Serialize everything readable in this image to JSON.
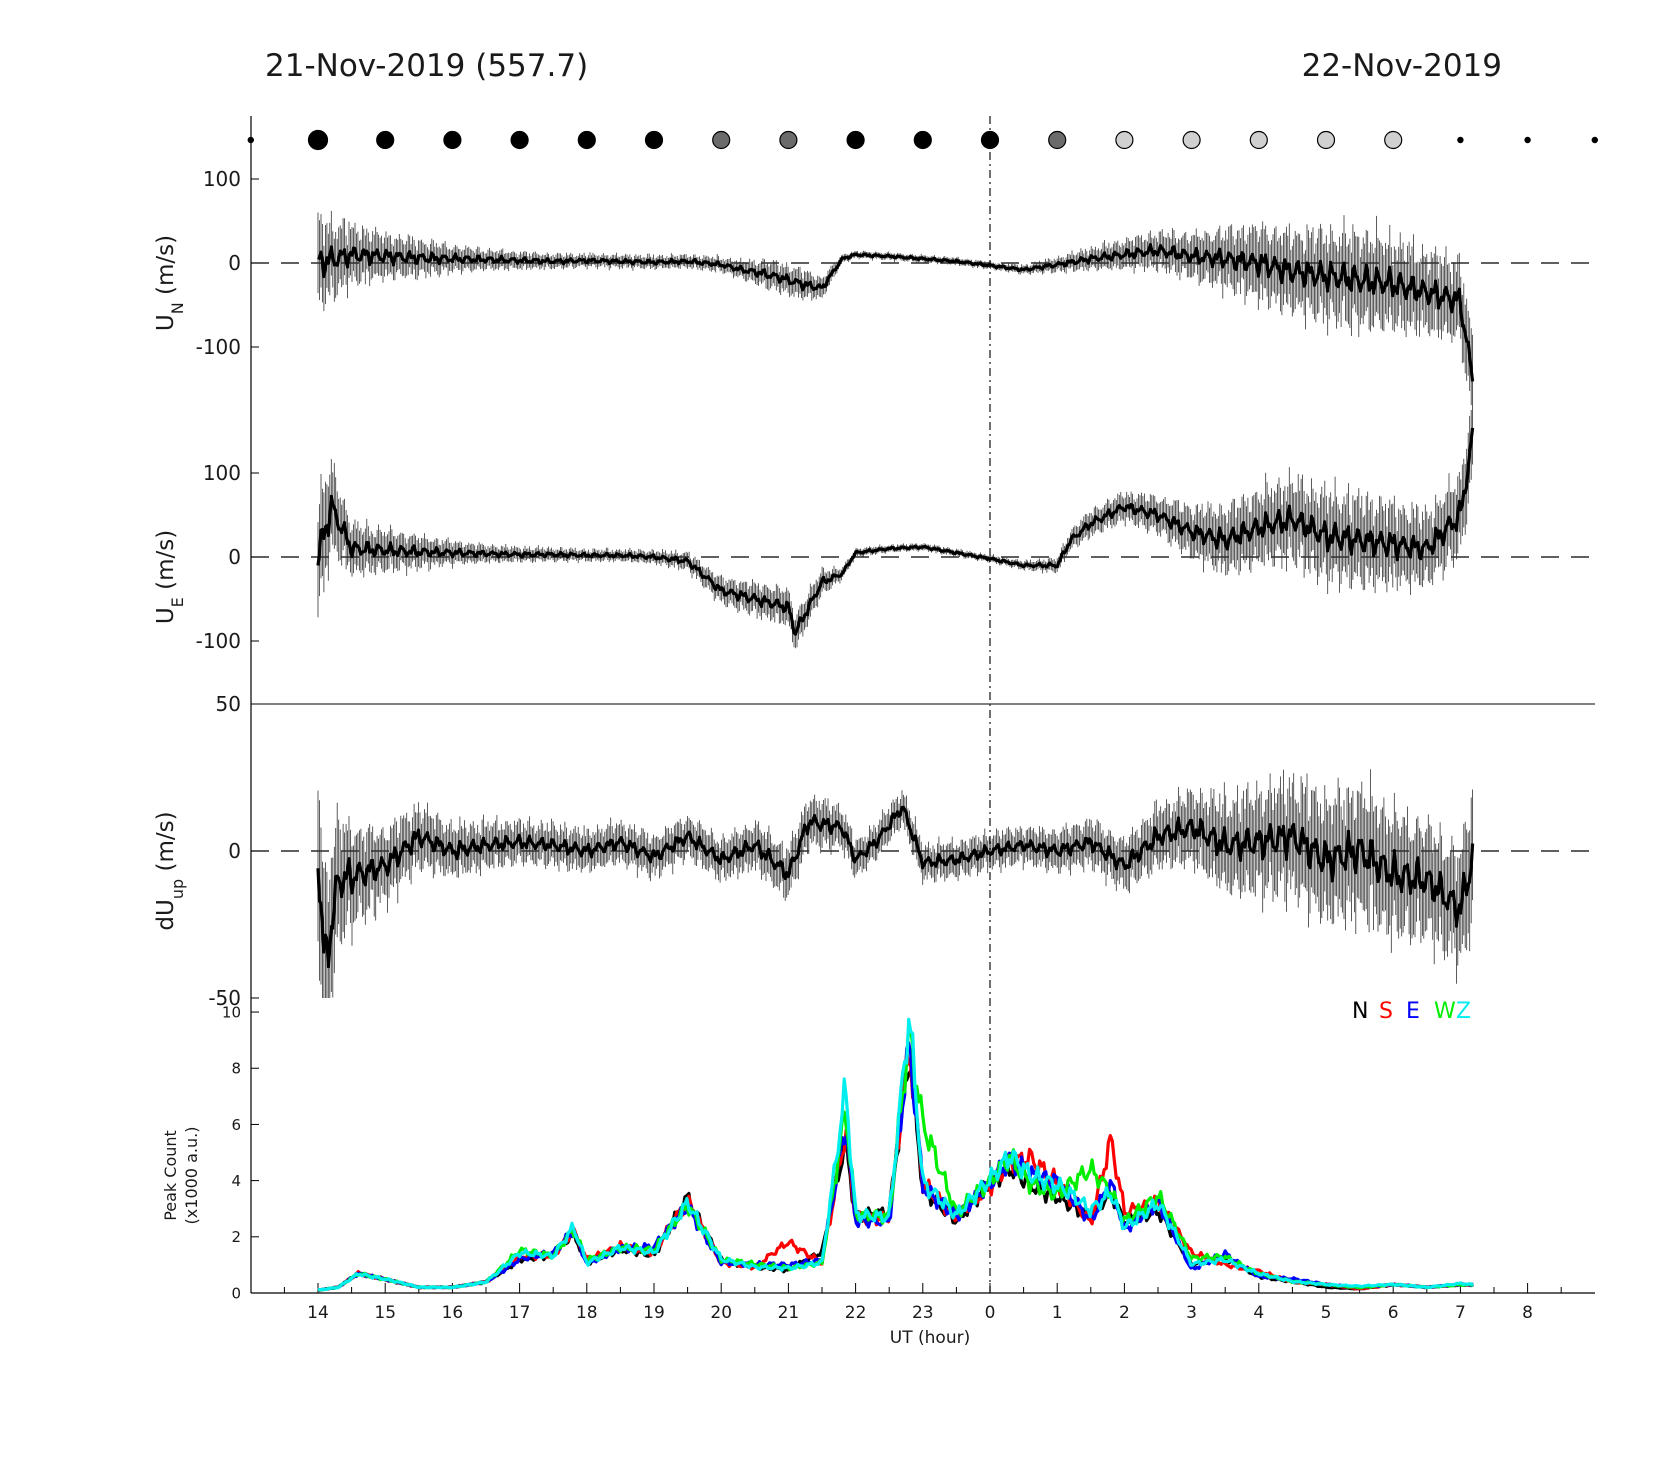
{
  "header": {
    "left_date": "21-Nov-2019 (557.7)",
    "right_date": "22-Nov-2019"
  },
  "chart_data": [
    {
      "type": "line",
      "name": "UN",
      "ylabel_main": "U",
      "ylabel_sub": "N",
      "ylabel_unit": " (m/s)",
      "ylim": [
        -175,
        175
      ],
      "yticks": [
        100,
        0,
        -100
      ],
      "x": [
        14.0,
        14.5,
        15.0,
        15.5,
        16.0,
        16.5,
        17.0,
        17.5,
        18.0,
        18.5,
        19.0,
        19.5,
        20.0,
        20.3,
        20.6,
        20.9,
        21.2,
        21.5,
        21.8,
        22.0,
        22.5,
        23.0,
        23.5,
        24.0,
        24.5,
        25.0,
        25.5,
        26.0,
        26.5,
        27.0,
        27.5,
        28.0,
        28.5,
        29.0,
        29.5,
        30.0,
        30.5,
        31.0,
        31.2
      ],
      "y": [
        0,
        10,
        8,
        6,
        5,
        4,
        3,
        2,
        3,
        2,
        1,
        2,
        -2,
        -8,
        -12,
        -18,
        -25,
        -30,
        5,
        10,
        8,
        5,
        2,
        -3,
        -8,
        -2,
        5,
        10,
        15,
        8,
        5,
        0,
        -10,
        -15,
        -20,
        -25,
        -35,
        -45,
        -150
      ],
      "err": [
        60,
        40,
        30,
        25,
        18,
        14,
        12,
        10,
        9,
        9,
        9,
        9,
        10,
        12,
        18,
        20,
        20,
        15,
        6,
        5,
        5,
        5,
        5,
        5,
        6,
        10,
        15,
        20,
        25,
        30,
        40,
        50,
        55,
        60,
        65,
        60,
        55,
        55,
        60
      ]
    },
    {
      "type": "line",
      "name": "UE",
      "ylabel_main": "U",
      "ylabel_sub": "E",
      "ylabel_unit": " (m/s)",
      "ylim": [
        -175,
        175
      ],
      "yticks": [
        100,
        0,
        -100
      ],
      "x": [
        14.0,
        14.2,
        14.5,
        15.0,
        15.5,
        16.0,
        16.5,
        17.0,
        17.5,
        18.0,
        18.5,
        19.0,
        19.5,
        20.0,
        20.5,
        21.0,
        21.1,
        21.5,
        21.8,
        22.0,
        22.5,
        23.0,
        23.5,
        24.0,
        24.5,
        25.0,
        25.2,
        25.5,
        26.0,
        26.5,
        27.0,
        27.5,
        28.0,
        28.5,
        29.0,
        29.5,
        30.0,
        30.5,
        31.0,
        31.2
      ],
      "y": [
        0,
        60,
        10,
        8,
        6,
        5,
        4,
        3,
        3,
        2,
        2,
        0,
        -5,
        -40,
        -50,
        -60,
        -90,
        -30,
        -20,
        5,
        10,
        12,
        5,
        -2,
        -10,
        -10,
        20,
        40,
        60,
        50,
        30,
        20,
        35,
        45,
        25,
        20,
        15,
        10,
        50,
        150
      ],
      "err": [
        80,
        60,
        35,
        28,
        22,
        16,
        12,
        10,
        9,
        8,
        8,
        9,
        12,
        18,
        22,
        25,
        25,
        18,
        8,
        6,
        5,
        5,
        5,
        5,
        6,
        10,
        14,
        18,
        20,
        25,
        35,
        45,
        50,
        55,
        60,
        60,
        55,
        50,
        55,
        60
      ]
    },
    {
      "type": "line",
      "name": "dUup",
      "ylabel_main": "dU",
      "ylabel_sub": "up",
      "ylabel_unit": " (m/s)",
      "ylim": [
        -50,
        50
      ],
      "yticks": [
        50,
        0,
        -50
      ],
      "x": [
        14.0,
        14.1,
        14.3,
        14.6,
        15.0,
        15.5,
        16.0,
        16.5,
        17.0,
        17.5,
        18.0,
        18.5,
        19.0,
        19.5,
        20.0,
        20.5,
        21.0,
        21.3,
        21.8,
        22.0,
        22.3,
        22.7,
        23.0,
        23.5,
        24.0,
        24.5,
        25.0,
        25.5,
        26.0,
        26.5,
        27.0,
        27.5,
        28.0,
        28.5,
        29.0,
        29.5,
        30.0,
        30.5,
        31.0,
        31.2
      ],
      "y": [
        0,
        -40,
        -10,
        -8,
        -5,
        5,
        0,
        2,
        3,
        2,
        0,
        3,
        -2,
        5,
        -3,
        2,
        -8,
        10,
        8,
        -3,
        3,
        15,
        -4,
        -3,
        0,
        2,
        0,
        3,
        -5,
        5,
        8,
        2,
        3,
        5,
        -3,
        0,
        -8,
        -10,
        -20,
        0
      ],
      "err": [
        40,
        35,
        25,
        18,
        14,
        12,
        10,
        9,
        8,
        8,
        8,
        8,
        8,
        8,
        8,
        9,
        10,
        10,
        8,
        7,
        7,
        7,
        7,
        7,
        7,
        7,
        8,
        9,
        10,
        12,
        14,
        18,
        20,
        22,
        24,
        25,
        24,
        22,
        22,
        30
      ]
    },
    {
      "type": "line",
      "name": "peak-count",
      "ylabel_line1": "Peak Count",
      "ylabel_line2": "(x1000 a.u.)",
      "xlabel": "UT (hour)",
      "ylim": [
        0,
        10.5
      ],
      "yticks": [
        0,
        2,
        4,
        6,
        8,
        10
      ],
      "xticks": [
        "14",
        "15",
        "16",
        "17",
        "18",
        "19",
        "20",
        "21",
        "22",
        "23",
        "0",
        "1",
        "2",
        "3",
        "4",
        "5",
        "6",
        "7",
        "8"
      ],
      "legend": [
        "N",
        "S",
        "E",
        "W",
        "Z"
      ],
      "legend_position": "top-right",
      "x": [
        14.0,
        14.3,
        14.6,
        15.0,
        15.5,
        16.0,
        16.5,
        17.0,
        17.5,
        17.8,
        18.0,
        18.5,
        19.0,
        19.5,
        20.0,
        20.5,
        21.0,
        21.5,
        21.85,
        22.0,
        22.5,
        22.8,
        23.0,
        23.5,
        24.0,
        24.3,
        24.6,
        25.0,
        25.5,
        25.8,
        26.0,
        26.5,
        27.0,
        27.5,
        28.0,
        28.5,
        29.0,
        29.5,
        30.0,
        30.5,
        31.0,
        31.2
      ],
      "series": [
        {
          "name": "N",
          "color": "#000000",
          "y": [
            0.1,
            0.2,
            0.7,
            0.5,
            0.2,
            0.2,
            0.4,
            1.2,
            1.3,
            2.1,
            1.1,
            1.6,
            1.3,
            3.4,
            1.2,
            0.9,
            0.8,
            1.5,
            5.5,
            2.7,
            2.8,
            8.5,
            3.8,
            2.6,
            3.8,
            4.4,
            3.9,
            3.5,
            2.6,
            3.5,
            2.5,
            3.0,
            1.0,
            1.2,
            0.6,
            0.4,
            0.2,
            0.15,
            0.3,
            0.2,
            0.3,
            0.3
          ]
        },
        {
          "name": "S",
          "color": "#ff0000",
          "y": [
            0.1,
            0.2,
            0.7,
            0.5,
            0.2,
            0.2,
            0.4,
            1.3,
            1.3,
            2.2,
            1.2,
            1.7,
            1.4,
            3.3,
            1.1,
            0.9,
            1.8,
            1.1,
            5.8,
            2.6,
            2.6,
            8.8,
            4.0,
            2.7,
            3.7,
            4.6,
            4.9,
            4.0,
            2.4,
            5.4,
            2.9,
            3.3,
            1.4,
            1.0,
            0.8,
            0.4,
            0.3,
            0.15,
            0.3,
            0.2,
            0.3,
            0.3
          ]
        },
        {
          "name": "E",
          "color": "#0000ff",
          "y": [
            0.1,
            0.2,
            0.7,
            0.5,
            0.2,
            0.2,
            0.4,
            1.2,
            1.4,
            2.2,
            1.1,
            1.6,
            1.6,
            3.1,
            1.1,
            1.0,
            1.0,
            1.2,
            6.0,
            2.5,
            2.5,
            9.0,
            3.9,
            2.7,
            3.8,
            4.8,
            4.3,
            4.0,
            2.5,
            3.9,
            2.3,
            3.3,
            0.8,
            1.4,
            0.6,
            0.5,
            0.3,
            0.2,
            0.3,
            0.2,
            0.3,
            0.3
          ]
        },
        {
          "name": "W",
          "color": "#00ee00",
          "y": [
            0.1,
            0.2,
            0.7,
            0.5,
            0.2,
            0.2,
            0.4,
            1.5,
            1.3,
            2.3,
            1.2,
            1.6,
            1.5,
            3.2,
            1.2,
            1.0,
            0.9,
            1.1,
            6.5,
            2.7,
            2.7,
            9.5,
            6.2,
            2.8,
            3.9,
            4.9,
            4.0,
            3.5,
            4.3,
            3.6,
            2.6,
            3.5,
            1.2,
            1.3,
            0.7,
            0.4,
            0.3,
            0.2,
            0.3,
            0.2,
            0.3,
            0.3
          ]
        },
        {
          "name": "Z",
          "color": "#00eeee",
          "y": [
            0.1,
            0.2,
            0.7,
            0.5,
            0.2,
            0.2,
            0.4,
            1.4,
            1.3,
            2.4,
            1.1,
            1.6,
            1.4,
            3.3,
            1.2,
            0.9,
            0.9,
            1.1,
            7.2,
            2.7,
            2.7,
            10.2,
            4.0,
            2.7,
            4.0,
            5.0,
            4.3,
            3.8,
            2.9,
            3.6,
            2.4,
            3.2,
            1.0,
            1.2,
            0.7,
            0.4,
            0.3,
            0.25,
            0.3,
            0.2,
            0.35,
            0.3
          ]
        }
      ]
    }
  ],
  "sky_dots": {
    "hours": [
      13.0,
      14.0,
      15.0,
      16.0,
      17.0,
      18.0,
      19.0,
      20.0,
      21.0,
      22.0,
      23.0,
      24.0,
      25.0,
      26.0,
      27.0,
      28.0,
      29.0,
      30.0,
      31.0,
      32.0,
      33.0
    ],
    "kinds": [
      "tiny",
      "black",
      "black",
      "black",
      "black",
      "black",
      "black",
      "dark",
      "dark",
      "black",
      "black",
      "black",
      "dark",
      "light",
      "light",
      "light",
      "light",
      "light",
      "tiny",
      "tiny",
      "tiny"
    ],
    "colors": {
      "black": "#000000",
      "dark": "#6b6b6b",
      "light": "#d0d0d0"
    }
  }
}
